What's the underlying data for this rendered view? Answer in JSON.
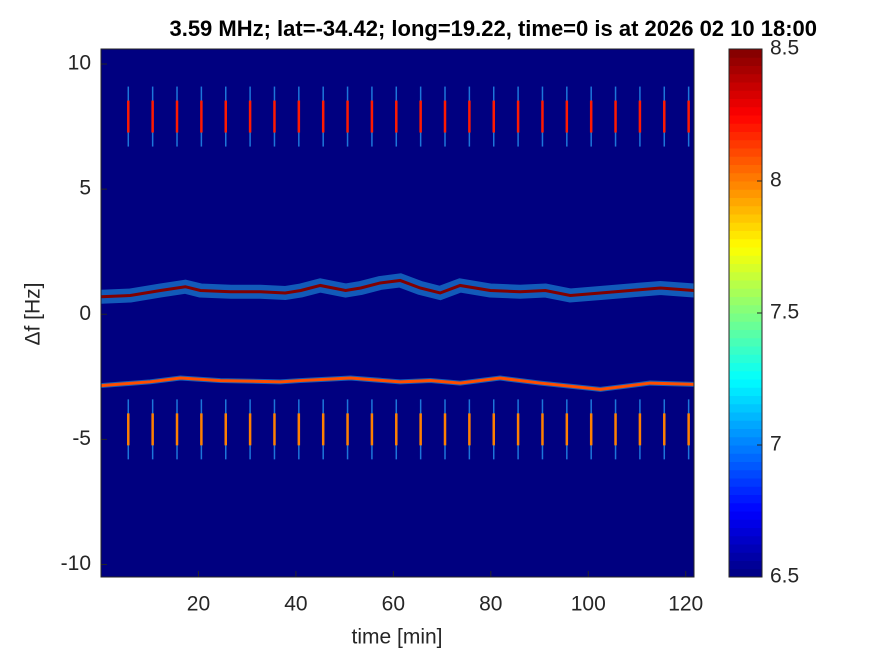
{
  "chart_data": {
    "type": "spectrogram",
    "title": "3.59 MHz;  lat=-34.42; long=19.22, time=0 is at 2026 02 10 18:00",
    "xlabel": "time [min]",
    "ylabel": "Δf [Hz]",
    "xlim": [
      0,
      121.7
    ],
    "ylim": [
      -10.5,
      10.6
    ],
    "xticks": [
      20,
      40,
      60,
      80,
      100,
      120
    ],
    "yticks": [
      -10,
      -5,
      0,
      5,
      10
    ],
    "colormap": "jet",
    "clim": [
      6.5,
      8.5
    ],
    "cticks": [
      6.5,
      7,
      7.5,
      8,
      8.5
    ],
    "series": [
      {
        "level": 8.5,
        "x": [
          0,
          6,
          12.2,
          17.3,
          20.4,
          26.6,
          32.7,
          37.8,
          41,
          45,
          50.2,
          53.3,
          57.3,
          61.4,
          65.5,
          69.6,
          73.7,
          79.9,
          86,
          91.2,
          96.3,
          102.5,
          108.6,
          114.8,
          121.7
        ],
        "values": [
          0.7,
          0.75,
          0.95,
          1.1,
          0.95,
          0.9,
          0.9,
          0.85,
          0.95,
          1.15,
          0.95,
          1.05,
          1.25,
          1.35,
          1.05,
          0.85,
          1.15,
          0.95,
          0.9,
          0.95,
          0.75,
          0.85,
          0.95,
          1.05,
          0.95
        ]
      },
      {
        "level": 8.1,
        "x": [
          0,
          10.1,
          16.3,
          24.5,
          36.8,
          40.9,
          51.2,
          61.4,
          67.6,
          73.7,
          81.9,
          90.1,
          102.5,
          112.7,
          121.7
        ],
        "values": [
          -2.85,
          -2.7,
          -2.55,
          -2.65,
          -2.7,
          -2.65,
          -2.55,
          -2.7,
          -2.65,
          -2.75,
          -2.55,
          -2.75,
          -3.0,
          -2.75,
          -2.8
        ]
      }
    ],
    "pulses": [
      {
        "level": 8.2,
        "values": [
          7.9,
          7.9,
          7.9,
          7.9,
          7.9,
          7.9,
          7.9,
          7.9,
          7.9,
          7.9,
          7.9,
          7.9,
          7.9,
          7.9,
          7.9,
          7.9,
          7.9,
          7.9,
          7.9,
          7.9,
          7.9,
          7.9,
          7.9,
          7.9
        ],
        "x": [
          5.6,
          10.6,
          15.6,
          20.6,
          25.6,
          30.6,
          35.6,
          40.6,
          45.6,
          50.6,
          55.6,
          60.6,
          65.6,
          70.6,
          75.6,
          80.6,
          85.6,
          90.6,
          95.6,
          100.6,
          105.6,
          110.6,
          115.6,
          120.6
        ]
      },
      {
        "level": 8.0,
        "values": [
          -4.6,
          -4.6,
          -4.6,
          -4.6,
          -4.6,
          -4.6,
          -4.6,
          -4.6,
          -4.6,
          -4.6,
          -4.6,
          -4.6,
          -4.6,
          -4.6,
          -4.6,
          -4.6,
          -4.6,
          -4.6,
          -4.6,
          -4.6,
          -4.6,
          -4.6,
          -4.6,
          -4.6
        ],
        "x": [
          5.6,
          10.6,
          15.6,
          20.6,
          25.6,
          30.6,
          35.6,
          40.6,
          45.6,
          50.6,
          55.6,
          60.6,
          65.6,
          70.6,
          75.6,
          80.6,
          85.6,
          90.6,
          95.6,
          100.6,
          105.6,
          110.6,
          115.6,
          120.6
        ]
      }
    ]
  }
}
